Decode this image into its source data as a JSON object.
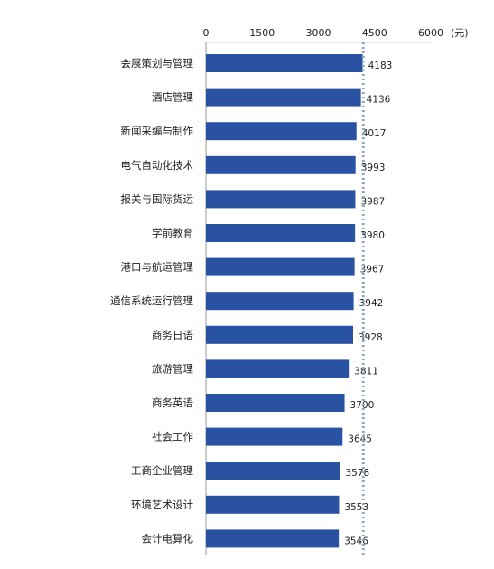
{
  "chart_data": {
    "type": "bar",
    "orientation": "horizontal",
    "title": "",
    "xlabel": "",
    "ylabel": "",
    "unit_label": "(元)",
    "x_ticks": [
      0,
      1500,
      3000,
      4500,
      6000
    ],
    "xlim": [
      0,
      6000
    ],
    "axis_position": "top",
    "grid": false,
    "reference_line": {
      "value": 4200,
      "style": "dotted"
    },
    "bar_color": "#2A52A3",
    "categories": [
      "会展策划与管理",
      "酒店管理",
      "新闻采编与制作",
      "电气自动化技术",
      "报关与国际货运",
      "学前教育",
      "港口与航运管理",
      "通信系统运行管理",
      "商务日语",
      "旅游管理",
      "商务英语",
      "社会工作",
      "工商企业管理",
      "环境艺术设计",
      "会计电算化"
    ],
    "values": [
      4183,
      4136,
      4017,
      3993,
      3987,
      3980,
      3967,
      3942,
      3928,
      3811,
      3700,
      3645,
      3578,
      3553,
      3546
    ],
    "data_labels": [
      "4183",
      "4136",
      "4017",
      "3993",
      "3987",
      "3980",
      "3967",
      "3942",
      "3928",
      "3811",
      "3700",
      "3645",
      "3578",
      "3553",
      "3546"
    ]
  }
}
